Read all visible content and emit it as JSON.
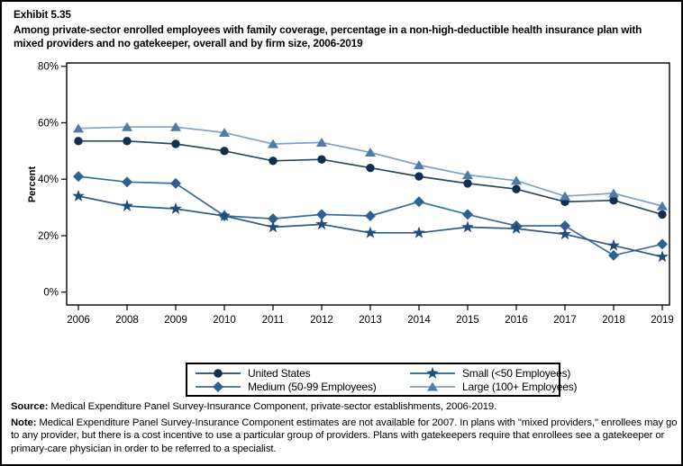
{
  "page": {
    "exhibit_label": "Exhibit 5.35",
    "title": "Among private-sector enrolled employees with family coverage, percentage in a non-high-deductible health insurance plan with mixed providers and no gatekeeper, overall and by firm size, 2006-2019"
  },
  "chart_data": {
    "type": "line",
    "title": "",
    "xlabel": "",
    "ylabel": "Percent",
    "ylim": [
      0,
      80
    ],
    "yticks": [
      0,
      20,
      40,
      60,
      80
    ],
    "ytick_labels": [
      "0%",
      "20%",
      "40%",
      "60%",
      "80%"
    ],
    "categories": [
      "2006",
      "2008",
      "2009",
      "2010",
      "2011",
      "2012",
      "2013",
      "2014",
      "2015",
      "2016",
      "2017",
      "2018",
      "2019"
    ],
    "grid": false,
    "legend_position": "bottom-boxed",
    "series": [
      {
        "key": "united_states",
        "name": "United States",
        "marker": "circle",
        "marker_color": "#122f4f",
        "line_color": "#29475f",
        "values": [
          53.5,
          53.5,
          52.5,
          50.0,
          46.5,
          47.0,
          44.0,
          41.0,
          38.5,
          36.5,
          32.0,
          32.5,
          27.5
        ]
      },
      {
        "key": "medium",
        "name": "Medium (50-99 Employees)",
        "marker": "diamond",
        "marker_color": "#2d6191",
        "line_color": "#3a6d9c",
        "values": [
          41.0,
          39.0,
          38.5,
          27.0,
          26.0,
          27.5,
          27.0,
          32.0,
          27.5,
          23.5,
          23.5,
          13.0,
          17.0
        ]
      },
      {
        "key": "small",
        "name": "Small (<50 Employees)",
        "marker": "star",
        "marker_color": "#1f4e79",
        "line_color": "#2e5c84",
        "values": [
          34.0,
          30.5,
          29.5,
          27.0,
          23.0,
          24.0,
          21.0,
          21.0,
          23.0,
          22.5,
          20.5,
          16.5,
          12.5
        ]
      },
      {
        "key": "large",
        "name": "Large (100+ Employees)",
        "marker": "triangle",
        "marker_color": "#4b7cab",
        "line_color": "#7fa3c4",
        "values": [
          58.0,
          58.5,
          58.5,
          56.5,
          52.5,
          53.0,
          49.5,
          45.0,
          41.5,
          39.5,
          34.0,
          35.0,
          30.5
        ]
      }
    ]
  },
  "legend": {
    "items": [
      {
        "key": "united_states",
        "label": "United States"
      },
      {
        "key": "small",
        "label": "Small (<50 Employees)"
      },
      {
        "key": "medium",
        "label": "Medium (50-99 Employees)"
      },
      {
        "key": "large",
        "label": "Large (100+ Employees)"
      }
    ]
  },
  "footer": {
    "source_label": "Source:",
    "source_text": " Medical Expenditure Panel Survey-Insurance Component, private-sector establishments, 2006-2019.",
    "note_label": "Note:",
    "note_text": " Medical Expenditure Panel Survey-Insurance Component estimates are not available for 2007. In plans with \"mixed providers,\" enrollees may go to any provider, but there is a cost incentive to use a particular group of providers. Plans with gatekeepers require that enrollees see a gatekeeper or primary-care physician in order to be referred to a specialist."
  }
}
